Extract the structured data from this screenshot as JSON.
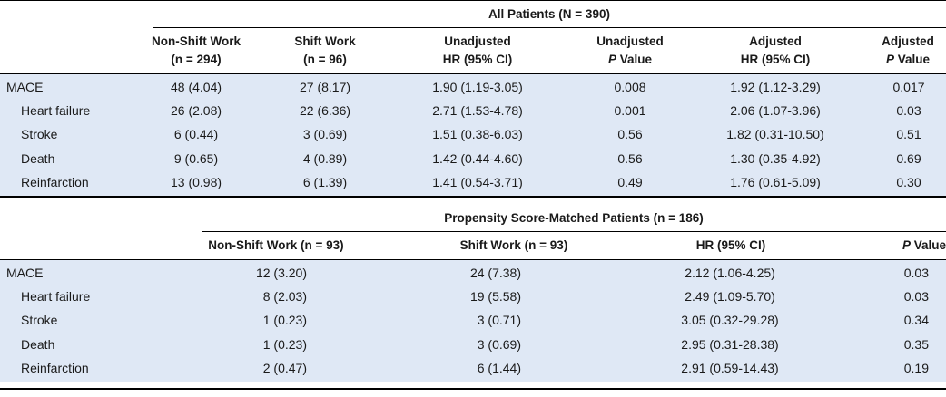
{
  "table1": {
    "group_header": "All Patients (N = 390)",
    "headers": [
      {
        "line1": "Non-Shift Work",
        "line2": "(n = 294)"
      },
      {
        "line1": "Shift Work",
        "line2": "(n = 96)"
      },
      {
        "line1": "Unadjusted",
        "line2": "HR (95% CI)"
      },
      {
        "line1": "Unadjusted",
        "line2_italic": "P",
        "line2_rest": " Value"
      },
      {
        "line1": "Adjusted",
        "line2": "HR (95% CI)"
      },
      {
        "line1": "Adjusted",
        "line2_italic": "P",
        "line2_rest": " Value"
      }
    ],
    "rows": [
      {
        "label": "MACE",
        "cells": [
          "48 (4.04)",
          "27 (8.17)",
          "1.90 (1.19-3.05)",
          "0.008",
          "1.92 (1.12-3.29)",
          "0.017"
        ]
      },
      {
        "label": "Heart failure",
        "cells": [
          "26 (2.08)",
          "22 (6.36)",
          "2.71 (1.53-4.78)",
          "0.001",
          "2.06 (1.07-3.96)",
          "0.03"
        ]
      },
      {
        "label": "Stroke",
        "cells": [
          "6 (0.44)",
          "3 (0.69)",
          "1.51 (0.38-6.03)",
          "0.56",
          "1.82 (0.31-10.50)",
          "0.51"
        ]
      },
      {
        "label": "Death",
        "cells": [
          "9 (0.65)",
          "4 (0.89)",
          "1.42 (0.44-4.60)",
          "0.56",
          "1.30 (0.35-4.92)",
          "0.69"
        ]
      },
      {
        "label": "Reinfarction",
        "cells": [
          "13 (0.98)",
          "6 (1.39)",
          "1.41 (0.54-3.71)",
          "0.49",
          "1.76 (0.61-5.09)",
          "0.30"
        ]
      }
    ]
  },
  "table2": {
    "group_header": "Propensity Score-Matched Patients (n = 186)",
    "headers": [
      {
        "text": "Non-Shift Work (n = 93)"
      },
      {
        "text": "Shift Work (n = 93)"
      },
      {
        "text": "HR (95% CI)"
      },
      {
        "italic": "P",
        "rest": " Value"
      }
    ],
    "rows": [
      {
        "label": "MACE",
        "cells": [
          "12 (3.20)",
          "24 (7.38)",
          "2.12 (1.06-4.25)",
          "0.03"
        ]
      },
      {
        "label": "Heart failure",
        "cells": [
          "8 (2.03)",
          "19 (5.58)",
          "2.49 (1.09-5.70)",
          "0.03"
        ]
      },
      {
        "label": "Stroke",
        "cells": [
          "1 (0.23)",
          "3 (0.71)",
          "3.05 (0.32-29.28)",
          "0.34"
        ]
      },
      {
        "label": "Death",
        "cells": [
          "1 (0.23)",
          "3 (0.69)",
          "2.95 (0.31-28.38)",
          "0.35"
        ]
      },
      {
        "label": "Reinfarction",
        "cells": [
          "2 (0.47)",
          "6 (1.44)",
          "2.91 (0.59-14.43)",
          "0.19"
        ]
      }
    ]
  }
}
